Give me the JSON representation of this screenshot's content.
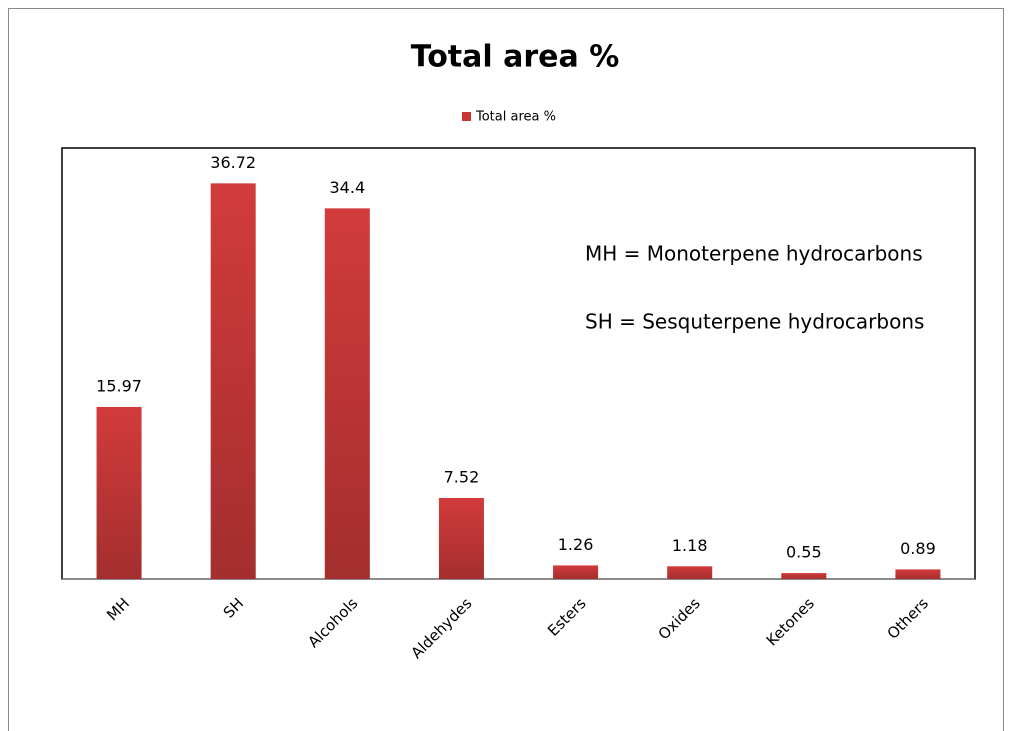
{
  "chart_data": {
    "type": "bar",
    "title": "Total area %",
    "legend": "Total area %",
    "categories": [
      "MH",
      "SH",
      "Alcohols",
      "Aldehydes",
      "Esters",
      "Oxides",
      "Ketones",
      "Others"
    ],
    "values": [
      15.97,
      36.72,
      34.4,
      7.52,
      1.26,
      1.18,
      0.55,
      0.89
    ],
    "color": "#d23b3b",
    "ylim": [
      0,
      40
    ],
    "annotations": [
      "MH = Monoterpene hydrocarbons",
      "SH =  Sesquterpene hydrocarbons"
    ]
  }
}
